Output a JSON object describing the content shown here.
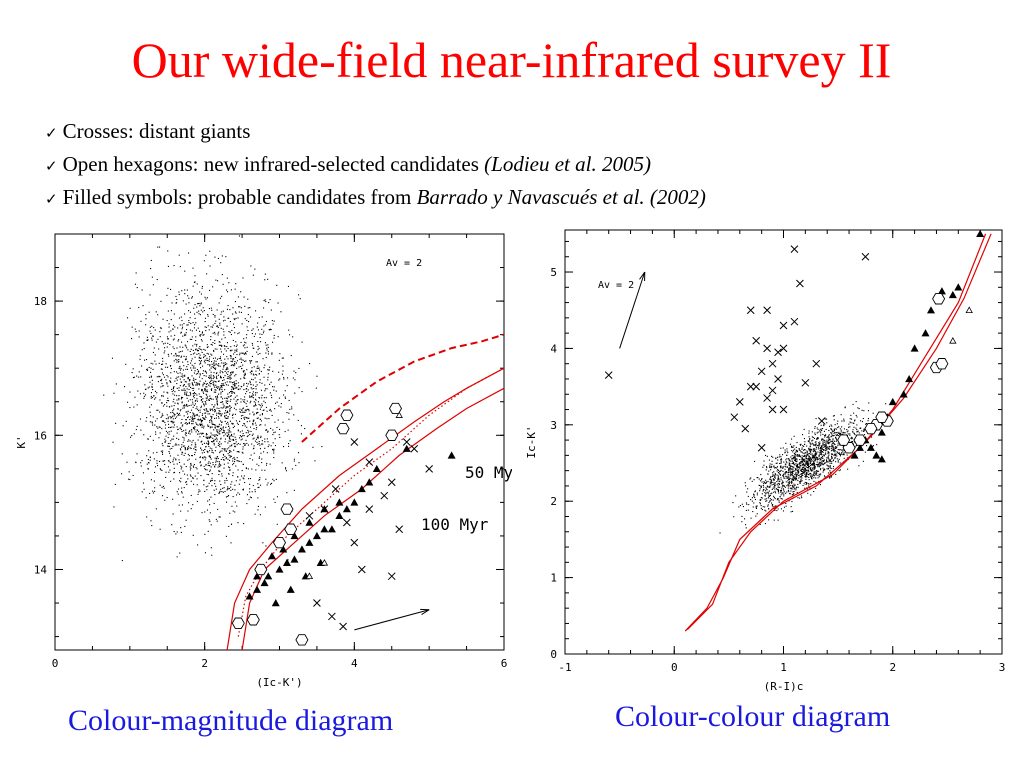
{
  "slide": {
    "title": "Our wide-field near-infrared survey II",
    "bullets": [
      {
        "check": "✓",
        "text": "Crosses: distant giants",
        "ref": ""
      },
      {
        "check": "✓",
        "text": "Open hexagons: new infrared-selected candidates ",
        "ref": "(Lodieu et al. 2005)"
      },
      {
        "check": "✓",
        "text": "Filled symbols: probable candidates from ",
        "ref": "Barrado y Navascués et al. (2002)"
      }
    ],
    "captions": {
      "left": "Colour-magnitude diagram",
      "right": "Colour-colour diagram"
    }
  },
  "colors": {
    "title": "#ff0000",
    "caption": "#1a1adf",
    "isochrone": "#e00000",
    "points": "#000000"
  },
  "chart_data": [
    {
      "type": "scatter",
      "name": "cmd",
      "xlabel": "(Ic-K')",
      "ylabel": "K'",
      "xlim": [
        0,
        6
      ],
      "ylim": [
        19,
        12.8
      ],
      "y_inverted": true,
      "xticks": [
        "0",
        "2",
        "4",
        "6"
      ],
      "yticks": [
        "14",
        "16",
        "18"
      ],
      "grid": false,
      "annotations": [
        "Av = 2",
        "50 Myr",
        "100 Myr"
      ],
      "reddening_vector": {
        "label": "Av = 2",
        "from": [
          4.0,
          13.1
        ],
        "to": [
          5.0,
          13.4
        ]
      },
      "field_cloud": {
        "x_center": 2.1,
        "x_spread": 1.0,
        "y_center": 16.5,
        "y_spread": 1.6,
        "count": 2600
      },
      "crosses": [
        [
          3.7,
          13.3
        ],
        [
          3.85,
          13.15
        ],
        [
          3.5,
          13.5
        ],
        [
          4.1,
          14.0
        ],
        [
          4.5,
          13.9
        ],
        [
          4.0,
          14.4
        ],
        [
          3.9,
          14.7
        ],
        [
          4.2,
          14.9
        ],
        [
          4.4,
          15.1
        ],
        [
          4.6,
          14.6
        ],
        [
          4.5,
          15.3
        ],
        [
          5.0,
          15.5
        ],
        [
          4.2,
          15.6
        ],
        [
          4.0,
          15.9
        ],
        [
          4.7,
          15.9
        ],
        [
          4.8,
          15.8
        ],
        [
          3.4,
          14.8
        ],
        [
          3.6,
          14.9
        ],
        [
          3.75,
          15.2
        ]
      ],
      "open_hexagons": [
        [
          3.3,
          12.95
        ],
        [
          2.45,
          13.2
        ],
        [
          2.65,
          13.25
        ],
        [
          2.75,
          14.0
        ],
        [
          3.0,
          14.4
        ],
        [
          3.15,
          14.6
        ],
        [
          3.1,
          14.9
        ],
        [
          3.85,
          16.1
        ],
        [
          3.9,
          16.3
        ],
        [
          4.5,
          16.0
        ],
        [
          4.55,
          16.4
        ]
      ],
      "filled_triangles": [
        [
          2.6,
          13.6
        ],
        [
          2.7,
          13.7
        ],
        [
          2.8,
          13.8
        ],
        [
          2.85,
          13.9
        ],
        [
          3.0,
          14.0
        ],
        [
          3.1,
          14.1
        ],
        [
          3.2,
          14.15
        ],
        [
          3.3,
          14.3
        ],
        [
          3.4,
          14.4
        ],
        [
          3.5,
          14.5
        ],
        [
          3.6,
          14.6
        ],
        [
          3.7,
          14.6
        ],
        [
          3.8,
          14.8
        ],
        [
          3.9,
          14.9
        ],
        [
          2.7,
          13.9
        ],
        [
          2.9,
          14.2
        ],
        [
          3.05,
          14.3
        ],
        [
          3.2,
          14.5
        ],
        [
          3.4,
          14.7
        ],
        [
          3.6,
          14.9
        ],
        [
          3.8,
          15.0
        ],
        [
          4.0,
          15.0
        ],
        [
          4.1,
          15.2
        ],
        [
          4.2,
          15.3
        ],
        [
          4.3,
          15.5
        ],
        [
          2.95,
          13.5
        ],
        [
          3.15,
          13.7
        ],
        [
          3.35,
          13.9
        ],
        [
          3.55,
          14.1
        ],
        [
          4.7,
          15.8
        ],
        [
          5.3,
          15.7
        ]
      ],
      "open_triangles": [
        [
          3.4,
          13.9
        ],
        [
          3.6,
          14.1
        ],
        [
          4.6,
          16.3
        ]
      ],
      "isochrones": [
        {
          "label": "50 Myr",
          "style": "solid",
          "points": [
            [
              2.3,
              12.8
            ],
            [
              2.4,
              13.5
            ],
            [
              2.6,
              14.0
            ],
            [
              2.9,
              14.4
            ],
            [
              3.3,
              14.9
            ],
            [
              3.8,
              15.4
            ],
            [
              4.3,
              15.8
            ],
            [
              4.8,
              16.2
            ],
            [
              5.2,
              16.5
            ],
            [
              5.5,
              16.7
            ],
            [
              6.0,
              17.0
            ]
          ]
        },
        {
          "label": "",
          "style": "solid",
          "points": [
            [
              2.5,
              12.8
            ],
            [
              2.6,
              13.5
            ],
            [
              2.8,
              14.0
            ],
            [
              3.2,
              14.4
            ],
            [
              3.6,
              14.8
            ],
            [
              4.1,
              15.2
            ],
            [
              4.6,
              15.7
            ],
            [
              5.1,
              16.1
            ],
            [
              5.5,
              16.4
            ],
            [
              6.0,
              16.7
            ]
          ]
        },
        {
          "label": "",
          "style": "dotted",
          "points": [
            [
              2.45,
              13.0
            ],
            [
              2.55,
              13.6
            ],
            [
              2.75,
              14.0
            ],
            [
              3.1,
              14.5
            ],
            [
              3.5,
              14.9
            ],
            [
              4.0,
              15.4
            ],
            [
              4.5,
              15.8
            ],
            [
              5.0,
              16.3
            ],
            [
              5.5,
              16.7
            ],
            [
              6.0,
              17.0
            ]
          ]
        },
        {
          "label": "100 Myr",
          "style": "dashed",
          "points": [
            [
              3.3,
              15.9
            ],
            [
              3.8,
              16.4
            ],
            [
              4.3,
              16.8
            ],
            [
              4.8,
              17.1
            ],
            [
              5.3,
              17.3
            ],
            [
              5.7,
              17.4
            ],
            [
              6.0,
              17.5
            ]
          ]
        }
      ]
    },
    {
      "type": "scatter",
      "name": "ccd",
      "xlabel": "(R-I)c",
      "ylabel": "Ic-K'",
      "xlim": [
        -1,
        3
      ],
      "ylim": [
        0,
        5.55
      ],
      "xticks": [
        "-1",
        "0",
        "1",
        "2",
        "3"
      ],
      "yticks": [
        "0",
        "1",
        "2",
        "3",
        "4",
        "5"
      ],
      "grid": false,
      "annotations": [
        "Av = 2"
      ],
      "reddening_vector": {
        "label": "Av = 2",
        "from": [
          -0.5,
          4.0
        ],
        "to": [
          -0.27,
          5.0
        ]
      },
      "field_cloud": {
        "x_center": 1.2,
        "x_spread": 0.5,
        "y_center": 2.5,
        "y_spread": 0.35,
        "count": 1600
      },
      "crosses": [
        [
          -0.6,
          3.65
        ],
        [
          1.1,
          5.3
        ],
        [
          1.15,
          4.85
        ],
        [
          1.75,
          5.2
        ],
        [
          0.7,
          4.5
        ],
        [
          0.85,
          4.5
        ],
        [
          1.0,
          4.3
        ],
        [
          0.75,
          4.1
        ],
        [
          0.85,
          4.0
        ],
        [
          0.95,
          3.95
        ],
        [
          0.9,
          3.8
        ],
        [
          0.8,
          3.7
        ],
        [
          0.95,
          3.6
        ],
        [
          0.75,
          3.5
        ],
        [
          0.9,
          3.45
        ],
        [
          0.85,
          3.35
        ],
        [
          0.9,
          3.2
        ],
        [
          1.0,
          3.2
        ],
        [
          0.6,
          3.3
        ],
        [
          0.55,
          3.1
        ],
        [
          0.65,
          2.95
        ],
        [
          0.7,
          3.5
        ],
        [
          1.0,
          4.0
        ],
        [
          1.1,
          4.35
        ],
        [
          1.3,
          3.8
        ],
        [
          1.2,
          3.55
        ],
        [
          0.8,
          2.7
        ],
        [
          1.35,
          3.05
        ]
      ],
      "open_hexagons": [
        [
          2.42,
          4.65
        ],
        [
          2.4,
          3.75
        ],
        [
          2.45,
          3.8
        ],
        [
          1.85,
          3.0
        ],
        [
          1.95,
          3.05
        ],
        [
          1.8,
          2.95
        ],
        [
          1.9,
          3.1
        ],
        [
          1.7,
          2.8
        ],
        [
          1.6,
          2.7
        ],
        [
          1.55,
          2.8
        ]
      ],
      "filled_triangles": [
        [
          2.8,
          5.5
        ],
        [
          2.45,
          4.75
        ],
        [
          2.55,
          4.7
        ],
        [
          2.35,
          4.5
        ],
        [
          2.6,
          4.8
        ],
        [
          2.3,
          4.2
        ],
        [
          2.2,
          4.0
        ],
        [
          2.15,
          3.6
        ],
        [
          2.1,
          3.4
        ],
        [
          2.0,
          3.3
        ],
        [
          1.95,
          3.1
        ],
        [
          1.9,
          2.9
        ],
        [
          1.85,
          2.6
        ],
        [
          1.8,
          2.7
        ],
        [
          1.75,
          2.8
        ],
        [
          1.7,
          2.7
        ],
        [
          1.65,
          2.6
        ],
        [
          1.9,
          2.55
        ]
      ],
      "open_triangles": [
        [
          2.7,
          4.5
        ],
        [
          2.55,
          4.1
        ],
        [
          2.45,
          3.8
        ]
      ],
      "sequences": [
        {
          "label": "",
          "style": "solid",
          "points": [
            [
              0.1,
              0.3
            ],
            [
              0.3,
              0.6
            ],
            [
              0.45,
              1.0
            ],
            [
              0.6,
              1.5
            ],
            [
              0.9,
              1.9
            ],
            [
              1.3,
              2.2
            ],
            [
              1.7,
              2.7
            ],
            [
              2.0,
              3.2
            ],
            [
              2.3,
              3.9
            ],
            [
              2.6,
              4.6
            ],
            [
              2.85,
              5.5
            ]
          ]
        },
        {
          "label": "",
          "style": "solid",
          "points": [
            [
              0.12,
              0.32
            ],
            [
              0.35,
              0.65
            ],
            [
              0.5,
              1.2
            ],
            [
              0.7,
              1.6
            ],
            [
              1.0,
              2.0
            ],
            [
              1.45,
              2.35
            ],
            [
              1.8,
              2.85
            ],
            [
              2.1,
              3.35
            ],
            [
              2.4,
              4.0
            ],
            [
              2.65,
              4.65
            ],
            [
              2.9,
              5.5
            ]
          ]
        }
      ]
    }
  ]
}
